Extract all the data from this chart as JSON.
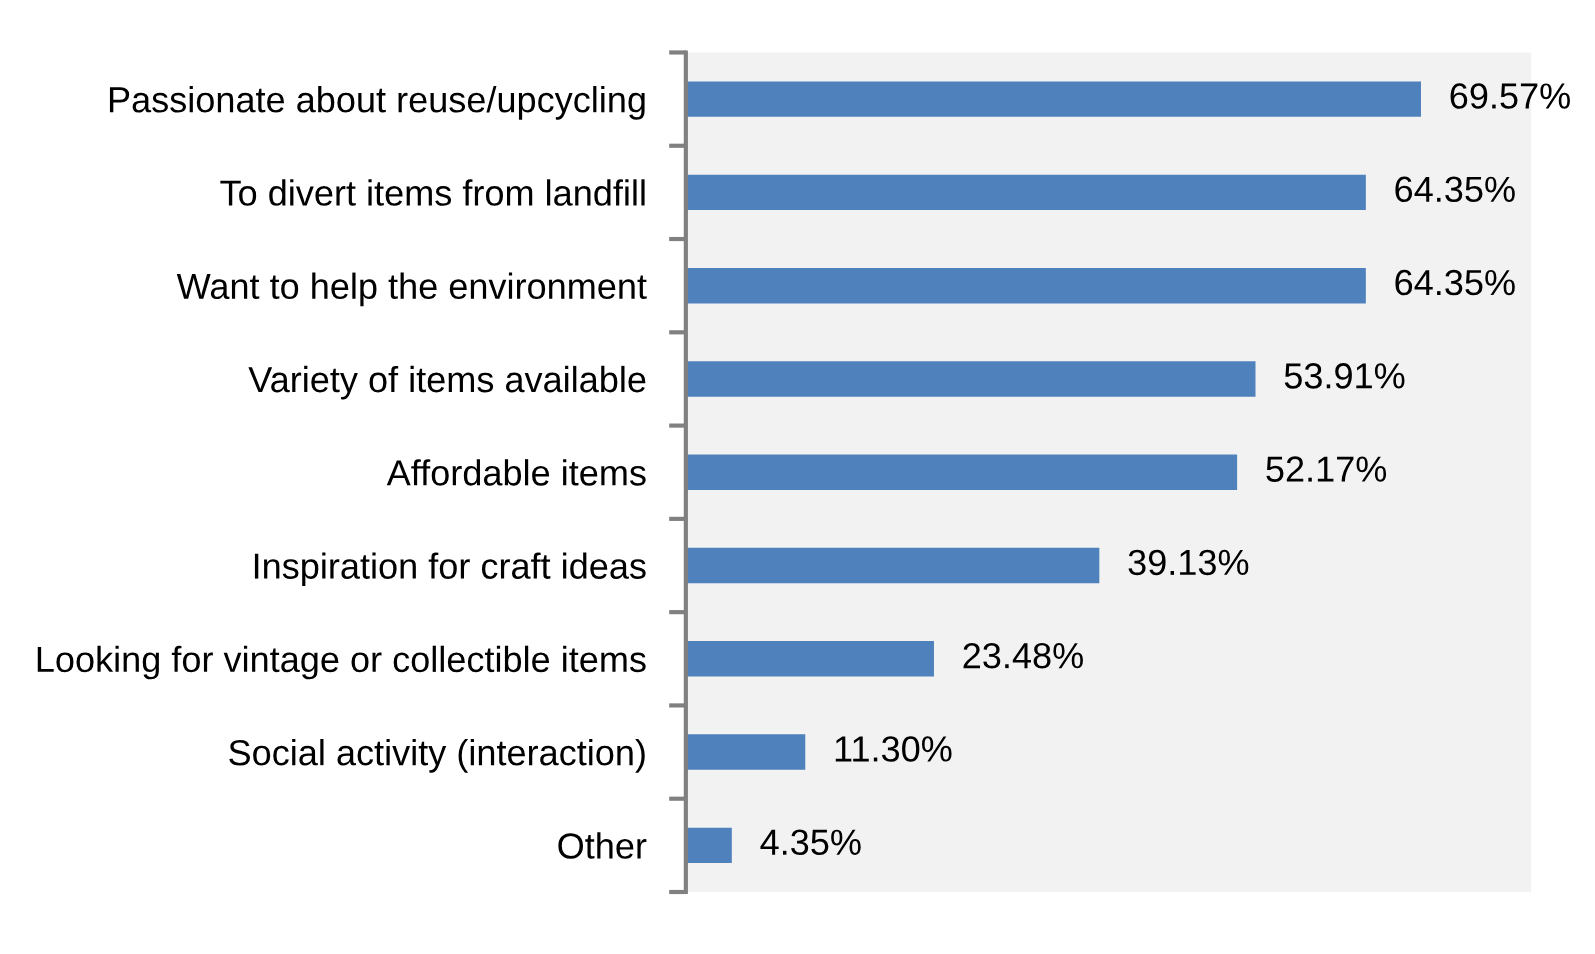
{
  "chart_data": {
    "type": "bar",
    "orientation": "horizontal",
    "categories": [
      "Passionate about reuse/upcycling",
      "To divert items from landfill",
      "Want to help the environment",
      "Variety of items available",
      "Affordable items",
      "Inspiration for craft ideas",
      "Looking for vintage or collectible items",
      "Social activity (interaction)",
      "Other"
    ],
    "values": [
      69.57,
      64.35,
      64.35,
      53.91,
      52.17,
      39.13,
      23.48,
      11.3,
      4.35
    ],
    "value_labels": [
      "69.57%",
      "64.35%",
      "64.35%",
      "53.91%",
      "52.17%",
      "39.13%",
      "23.48%",
      "11.30%",
      "4.35%"
    ],
    "color": "#4f81bd",
    "xlim": [
      0,
      80
    ],
    "tick_labels": "y",
    "grid": false,
    "legend": false
  }
}
